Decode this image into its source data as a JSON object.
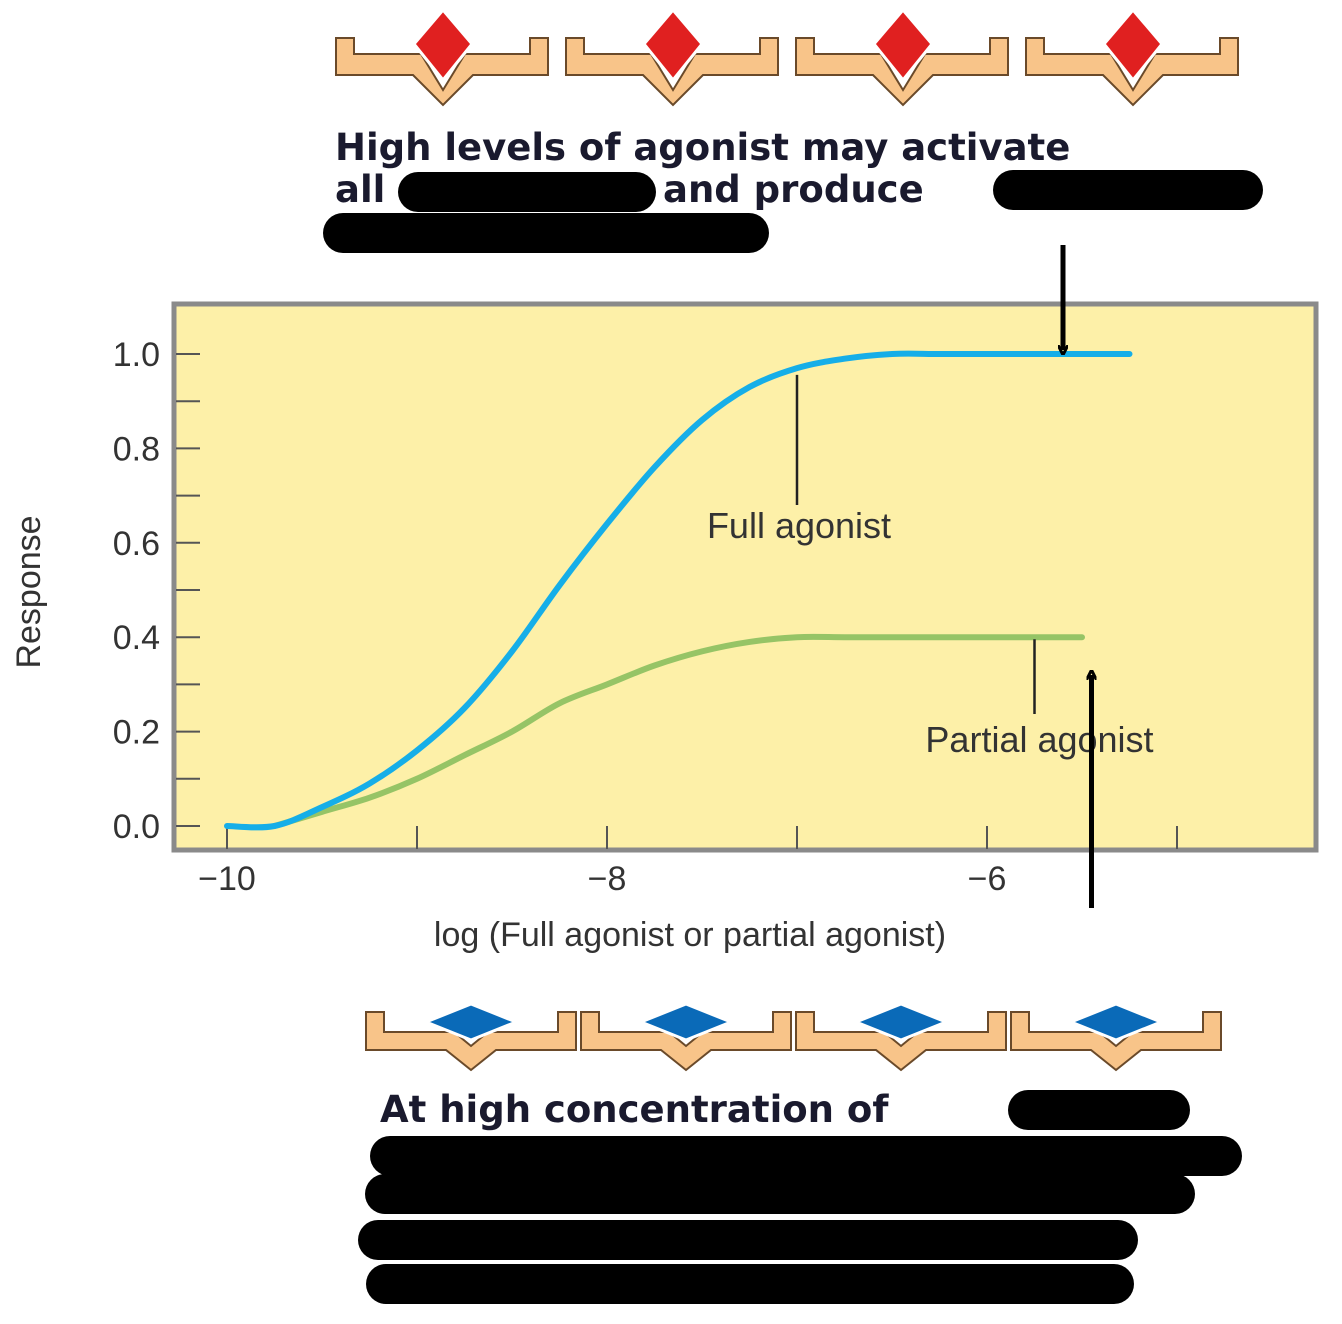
{
  "top_caption": {
    "line1": "High levels of agonist may activate",
    "line2_a": "all",
    "line2_b": "and produce"
  },
  "bottom_caption": {
    "line1": "At high concentration of"
  },
  "receptor_colors": {
    "receptor_fill": "#f8c489",
    "receptor_stroke": "#6a4a2a",
    "agonist_diamond": "#e02020",
    "partial_diamond": "#0a6ab8",
    "plot_bg": "#fdf0a8"
  },
  "chart_data": {
    "type": "line",
    "xlabel": "log (Full agonist or partial agonist)",
    "ylabel": "Response",
    "xlim": [
      -10.25,
      -4.75
    ],
    "ylim": [
      0.0,
      1.1
    ],
    "x_ticks": [
      -10,
      -8,
      -6
    ],
    "x_tick_labels": [
      "−10",
      "−8",
      "−6"
    ],
    "x_minor_ticks": [
      -9,
      -7,
      -5
    ],
    "y_ticks": [
      0.0,
      0.2,
      0.4,
      0.6,
      0.8,
      1.0
    ],
    "y_tick_labels": [
      "0.0",
      "0.2",
      "0.4",
      "0.6",
      "0.8",
      "1.0"
    ],
    "y_minor_ticks": [
      0.1,
      0.3,
      0.5,
      0.7,
      0.9
    ],
    "grid": false,
    "series": [
      {
        "name": "Full agonist",
        "color": "#16aee8",
        "x": [
          -10.0,
          -9.75,
          -9.5,
          -9.25,
          -9.0,
          -8.75,
          -8.5,
          -8.25,
          -8.0,
          -7.75,
          -7.5,
          -7.25,
          -7.0,
          -6.75,
          -6.5,
          -6.25,
          -6.0,
          -5.75,
          -5.5,
          -5.25
        ],
        "y": [
          0.0,
          0.0,
          0.04,
          0.09,
          0.16,
          0.25,
          0.37,
          0.51,
          0.64,
          0.76,
          0.86,
          0.93,
          0.97,
          0.99,
          1.0,
          1.0,
          1.0,
          1.0,
          1.0,
          1.0
        ]
      },
      {
        "name": "Partial agonist",
        "color": "#96c466",
        "x": [
          -9.75,
          -9.5,
          -9.25,
          -9.0,
          -8.75,
          -8.5,
          -8.25,
          -8.0,
          -7.75,
          -7.5,
          -7.25,
          -7.0,
          -6.75,
          -6.5,
          -6.25,
          -6.0,
          -5.75,
          -5.5
        ],
        "y": [
          0.0,
          0.03,
          0.06,
          0.1,
          0.15,
          0.2,
          0.26,
          0.3,
          0.34,
          0.37,
          0.39,
          0.4,
          0.4,
          0.4,
          0.4,
          0.4,
          0.4,
          0.4
        ]
      }
    ],
    "annotations": [
      {
        "text": "Full agonist",
        "series": "Full agonist",
        "leader_x": -7.0,
        "leader_y": 0.96
      },
      {
        "text": "Partial agonist",
        "series": "Partial agonist",
        "leader_x": -5.75,
        "leader_y": 0.4
      }
    ],
    "arrows": [
      {
        "direction": "down",
        "points_to_x": -5.6,
        "points_to_y": 1.0
      },
      {
        "direction": "up",
        "points_to_x": -5.45,
        "points_to_y": 0.32
      }
    ]
  }
}
